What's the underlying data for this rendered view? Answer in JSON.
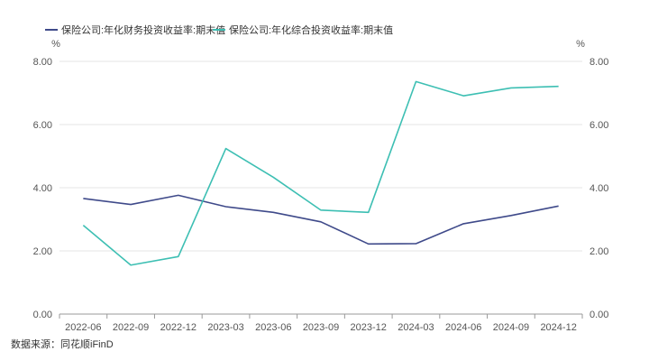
{
  "chart_data": {
    "type": "line",
    "categories": [
      "2022-06",
      "2022-09",
      "2022-12",
      "2023-03",
      "2023-06",
      "2023-09",
      "2023-12",
      "2024-03",
      "2024-06",
      "2024-09",
      "2024-12"
    ],
    "series": [
      {
        "name": "保险公司:年化财务投资收益率:期末值",
        "color": "#3f4a8a",
        "axis": "left",
        "values": [
          3.66,
          3.47,
          3.76,
          3.4,
          3.22,
          2.92,
          2.22,
          2.23,
          2.86,
          3.12,
          3.42
        ]
      },
      {
        "name": "保险公司:年化综合投资收益率:期末值",
        "color": "#3dbfb3",
        "axis": "right",
        "values": [
          2.81,
          1.55,
          1.82,
          5.24,
          4.33,
          3.29,
          3.22,
          7.36,
          6.91,
          7.16,
          7.21
        ]
      }
    ],
    "y_left": {
      "unit": "%",
      "range": [
        0,
        8
      ],
      "ticks": [
        "0.00",
        "2.00",
        "4.00",
        "6.00",
        "8.00"
      ]
    },
    "y_right": {
      "unit": "%",
      "range": [
        0,
        8
      ],
      "ticks": [
        "0.00",
        "2.00",
        "4.00",
        "6.00",
        "8.00"
      ]
    },
    "grid": true,
    "legend": "top-left"
  },
  "source": "数据来源：同花顺iFinD"
}
